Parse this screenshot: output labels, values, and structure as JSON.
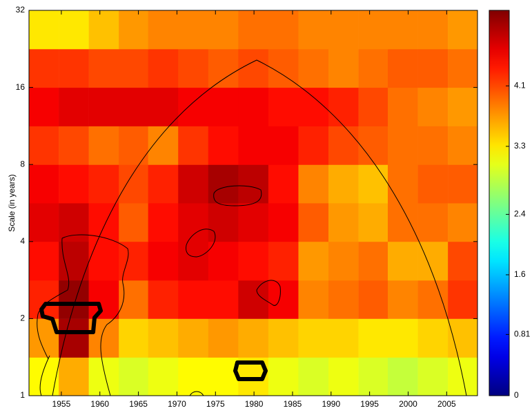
{
  "chart_data": {
    "type": "heatmap",
    "y_label": "Scale (in years)",
    "x": [
      1952.7,
      1956.6,
      1960.5,
      1964.4,
      1968.2,
      1972.1,
      1976.0,
      1979.9,
      1983.8,
      1987.7,
      1991.6,
      1995.5,
      1999.3,
      2003.2,
      2007.1
    ],
    "y": [
      1.19,
      1.68,
      2.38,
      3.36,
      4.76,
      6.73,
      9.51,
      13.45,
      19.03,
      26.91
    ],
    "z": [
      [
        3.2,
        3.6,
        3.1,
        3.0,
        3.1,
        3.2,
        3.2,
        3.3,
        3.1,
        3.0,
        3.1,
        3.0,
        2.9,
        3.0,
        3.1
      ],
      [
        3.7,
        4.9,
        3.8,
        3.4,
        3.5,
        3.6,
        3.7,
        3.6,
        3.5,
        3.4,
        3.4,
        3.3,
        3.3,
        3.4,
        3.5
      ],
      [
        4.3,
        5.0,
        4.5,
        3.9,
        4.3,
        4.4,
        4.4,
        4.7,
        4.5,
        3.8,
        3.9,
        4.0,
        3.8,
        3.9,
        4.2
      ],
      [
        4.4,
        4.8,
        4.4,
        4.3,
        4.5,
        4.6,
        4.5,
        4.4,
        4.3,
        3.7,
        3.8,
        3.9,
        3.6,
        3.6,
        4.1
      ],
      [
        4.6,
        4.7,
        4.4,
        4.0,
        4.4,
        4.6,
        4.7,
        4.6,
        4.5,
        4.0,
        3.7,
        3.6,
        3.9,
        3.9,
        3.8
      ],
      [
        4.5,
        4.4,
        4.3,
        4.1,
        4.3,
        4.7,
        4.9,
        4.8,
        4.4,
        3.8,
        3.6,
        3.5,
        3.9,
        4.0,
        4.0
      ],
      [
        4.2,
        4.1,
        3.9,
        4.0,
        3.8,
        4.2,
        4.4,
        4.5,
        4.5,
        4.3,
        4.1,
        4.0,
        3.9,
        3.9,
        3.8
      ],
      [
        4.5,
        4.6,
        4.6,
        4.6,
        4.6,
        4.5,
        4.5,
        4.5,
        4.4,
        4.4,
        4.3,
        4.1,
        3.9,
        3.8,
        3.7
      ],
      [
        4.2,
        4.2,
        4.1,
        4.1,
        4.2,
        4.1,
        4.0,
        4.1,
        4.0,
        3.9,
        3.8,
        3.9,
        4.0,
        4.0,
        3.9
      ],
      [
        3.3,
        3.3,
        3.5,
        3.7,
        3.8,
        3.8,
        3.8,
        3.9,
        3.9,
        3.8,
        3.8,
        3.8,
        3.8,
        3.8,
        3.7
      ]
    ],
    "xlim": [
      1950.8,
      2009
    ],
    "xticks": [
      1955,
      1960,
      1965,
      1970,
      1975,
      1980,
      1985,
      1990,
      1995,
      2000,
      2005
    ],
    "ylim": [
      1,
      32
    ],
    "yticks": [
      1,
      2,
      4,
      8,
      16,
      32
    ],
    "y_log": true,
    "colormap": "jet",
    "zlim": [
      0,
      5.1
    ],
    "zticks": [
      0,
      0.81,
      1.6,
      2.4,
      3.3,
      4.1
    ]
  }
}
